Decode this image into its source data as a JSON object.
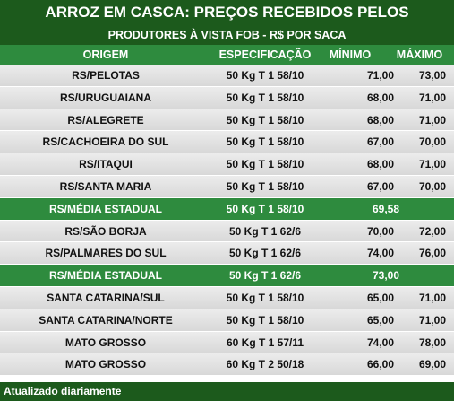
{
  "title": "ARROZ EM CASCA: PREÇOS RECEBIDOS PELOS PRODUTORES",
  "subtitle": "PRODUTORES À VISTA FOB - R$ POR SACA",
  "headers": {
    "origem": "ORIGEM",
    "especificacao": "ESPECIFICAÇÃO",
    "minimo": "MÍNIMO",
    "maximo": "MÁXIMO"
  },
  "rows": [
    {
      "type": "normal",
      "origem": "RS/PELOTAS",
      "espec": "50 Kg T 1 58/10",
      "min": "71,00",
      "max": "73,00"
    },
    {
      "type": "normal",
      "origem": "RS/URUGUAIANA",
      "espec": "50 Kg T 1 58/10",
      "min": "68,00",
      "max": "71,00"
    },
    {
      "type": "normal",
      "origem": "RS/ALEGRETE",
      "espec": "50 Kg T 1 58/10",
      "min": "68,00",
      "max": "71,00"
    },
    {
      "type": "normal",
      "origem": "RS/CACHOEIRA DO SUL",
      "espec": "50 Kg T 1 58/10",
      "min": "67,00",
      "max": "70,00"
    },
    {
      "type": "normal",
      "origem": "RS/ITAQUI",
      "espec": "50 Kg T 1 58/10",
      "min": "68,00",
      "max": "71,00"
    },
    {
      "type": "normal",
      "origem": "RS/SANTA MARIA",
      "espec": "50 Kg T 1 58/10",
      "min": "67,00",
      "max": "70,00"
    },
    {
      "type": "avg",
      "origem": "RS/MÉDIA ESTADUAL",
      "espec": "50 Kg T 1 58/10",
      "media": "69,58"
    },
    {
      "type": "normal",
      "origem": "RS/SÃO BORJA",
      "espec": "50 Kg T 1 62/6",
      "min": "70,00",
      "max": "72,00"
    },
    {
      "type": "normal",
      "origem": "RS/PALMARES DO SUL",
      "espec": "50 Kg T 1 62/6",
      "min": "74,00",
      "max": "76,00"
    },
    {
      "type": "avg",
      "origem": "RS/MÉDIA ESTADUAL",
      "espec": "50 Kg T 1 62/6",
      "media": "73,00"
    },
    {
      "type": "normal",
      "origem": "SANTA CATARINA/SUL",
      "espec": "50 Kg T 1 58/10",
      "min": "65,00",
      "max": "71,00"
    },
    {
      "type": "normal",
      "origem": "SANTA CATARINA/NORTE",
      "espec": "50 Kg T 1 58/10",
      "min": "65,00",
      "max": "71,00"
    },
    {
      "type": "normal",
      "origem": "MATO GROSSO",
      "espec": "60 Kg T 1 57/11",
      "min": "74,00",
      "max": "78,00"
    },
    {
      "type": "normal",
      "origem": "MATO GROSSO",
      "espec": "60 Kg T 2 50/18",
      "min": "66,00",
      "max": "69,00"
    }
  ],
  "footer": "Atualizado diariamente",
  "colors": {
    "dark_green": "#1c5a1c",
    "green": "#2e8b3e"
  }
}
